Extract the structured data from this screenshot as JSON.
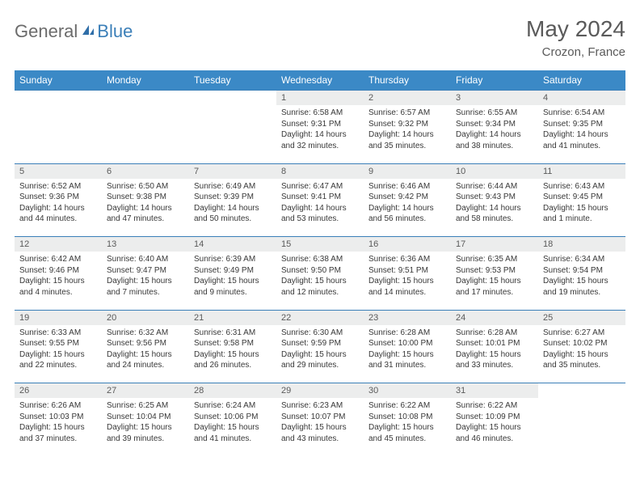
{
  "logo": {
    "part1": "General",
    "part2": "Blue"
  },
  "title": "May 2024",
  "location": "Crozon, France",
  "colors": {
    "header_bg": "#3b89c6",
    "header_text": "#ffffff",
    "rule": "#3b7fb8",
    "daynum_bg": "#eceded",
    "text_muted": "#5a5a5a",
    "body_text": "#383838",
    "logo_gray": "#6b6b6b",
    "logo_blue": "#3b7fb8"
  },
  "weekdays": [
    "Sunday",
    "Monday",
    "Tuesday",
    "Wednesday",
    "Thursday",
    "Friday",
    "Saturday"
  ],
  "weeks": [
    [
      {
        "n": "",
        "sr": "",
        "ss": "",
        "dl": ""
      },
      {
        "n": "",
        "sr": "",
        "ss": "",
        "dl": ""
      },
      {
        "n": "",
        "sr": "",
        "ss": "",
        "dl": ""
      },
      {
        "n": "1",
        "sr": "Sunrise: 6:58 AM",
        "ss": "Sunset: 9:31 PM",
        "dl": "Daylight: 14 hours and 32 minutes."
      },
      {
        "n": "2",
        "sr": "Sunrise: 6:57 AM",
        "ss": "Sunset: 9:32 PM",
        "dl": "Daylight: 14 hours and 35 minutes."
      },
      {
        "n": "3",
        "sr": "Sunrise: 6:55 AM",
        "ss": "Sunset: 9:34 PM",
        "dl": "Daylight: 14 hours and 38 minutes."
      },
      {
        "n": "4",
        "sr": "Sunrise: 6:54 AM",
        "ss": "Sunset: 9:35 PM",
        "dl": "Daylight: 14 hours and 41 minutes."
      }
    ],
    [
      {
        "n": "5",
        "sr": "Sunrise: 6:52 AM",
        "ss": "Sunset: 9:36 PM",
        "dl": "Daylight: 14 hours and 44 minutes."
      },
      {
        "n": "6",
        "sr": "Sunrise: 6:50 AM",
        "ss": "Sunset: 9:38 PM",
        "dl": "Daylight: 14 hours and 47 minutes."
      },
      {
        "n": "7",
        "sr": "Sunrise: 6:49 AM",
        "ss": "Sunset: 9:39 PM",
        "dl": "Daylight: 14 hours and 50 minutes."
      },
      {
        "n": "8",
        "sr": "Sunrise: 6:47 AM",
        "ss": "Sunset: 9:41 PM",
        "dl": "Daylight: 14 hours and 53 minutes."
      },
      {
        "n": "9",
        "sr": "Sunrise: 6:46 AM",
        "ss": "Sunset: 9:42 PM",
        "dl": "Daylight: 14 hours and 56 minutes."
      },
      {
        "n": "10",
        "sr": "Sunrise: 6:44 AM",
        "ss": "Sunset: 9:43 PM",
        "dl": "Daylight: 14 hours and 58 minutes."
      },
      {
        "n": "11",
        "sr": "Sunrise: 6:43 AM",
        "ss": "Sunset: 9:45 PM",
        "dl": "Daylight: 15 hours and 1 minute."
      }
    ],
    [
      {
        "n": "12",
        "sr": "Sunrise: 6:42 AM",
        "ss": "Sunset: 9:46 PM",
        "dl": "Daylight: 15 hours and 4 minutes."
      },
      {
        "n": "13",
        "sr": "Sunrise: 6:40 AM",
        "ss": "Sunset: 9:47 PM",
        "dl": "Daylight: 15 hours and 7 minutes."
      },
      {
        "n": "14",
        "sr": "Sunrise: 6:39 AM",
        "ss": "Sunset: 9:49 PM",
        "dl": "Daylight: 15 hours and 9 minutes."
      },
      {
        "n": "15",
        "sr": "Sunrise: 6:38 AM",
        "ss": "Sunset: 9:50 PM",
        "dl": "Daylight: 15 hours and 12 minutes."
      },
      {
        "n": "16",
        "sr": "Sunrise: 6:36 AM",
        "ss": "Sunset: 9:51 PM",
        "dl": "Daylight: 15 hours and 14 minutes."
      },
      {
        "n": "17",
        "sr": "Sunrise: 6:35 AM",
        "ss": "Sunset: 9:53 PM",
        "dl": "Daylight: 15 hours and 17 minutes."
      },
      {
        "n": "18",
        "sr": "Sunrise: 6:34 AM",
        "ss": "Sunset: 9:54 PM",
        "dl": "Daylight: 15 hours and 19 minutes."
      }
    ],
    [
      {
        "n": "19",
        "sr": "Sunrise: 6:33 AM",
        "ss": "Sunset: 9:55 PM",
        "dl": "Daylight: 15 hours and 22 minutes."
      },
      {
        "n": "20",
        "sr": "Sunrise: 6:32 AM",
        "ss": "Sunset: 9:56 PM",
        "dl": "Daylight: 15 hours and 24 minutes."
      },
      {
        "n": "21",
        "sr": "Sunrise: 6:31 AM",
        "ss": "Sunset: 9:58 PM",
        "dl": "Daylight: 15 hours and 26 minutes."
      },
      {
        "n": "22",
        "sr": "Sunrise: 6:30 AM",
        "ss": "Sunset: 9:59 PM",
        "dl": "Daylight: 15 hours and 29 minutes."
      },
      {
        "n": "23",
        "sr": "Sunrise: 6:28 AM",
        "ss": "Sunset: 10:00 PM",
        "dl": "Daylight: 15 hours and 31 minutes."
      },
      {
        "n": "24",
        "sr": "Sunrise: 6:28 AM",
        "ss": "Sunset: 10:01 PM",
        "dl": "Daylight: 15 hours and 33 minutes."
      },
      {
        "n": "25",
        "sr": "Sunrise: 6:27 AM",
        "ss": "Sunset: 10:02 PM",
        "dl": "Daylight: 15 hours and 35 minutes."
      }
    ],
    [
      {
        "n": "26",
        "sr": "Sunrise: 6:26 AM",
        "ss": "Sunset: 10:03 PM",
        "dl": "Daylight: 15 hours and 37 minutes."
      },
      {
        "n": "27",
        "sr": "Sunrise: 6:25 AM",
        "ss": "Sunset: 10:04 PM",
        "dl": "Daylight: 15 hours and 39 minutes."
      },
      {
        "n": "28",
        "sr": "Sunrise: 6:24 AM",
        "ss": "Sunset: 10:06 PM",
        "dl": "Daylight: 15 hours and 41 minutes."
      },
      {
        "n": "29",
        "sr": "Sunrise: 6:23 AM",
        "ss": "Sunset: 10:07 PM",
        "dl": "Daylight: 15 hours and 43 minutes."
      },
      {
        "n": "30",
        "sr": "Sunrise: 6:22 AM",
        "ss": "Sunset: 10:08 PM",
        "dl": "Daylight: 15 hours and 45 minutes."
      },
      {
        "n": "31",
        "sr": "Sunrise: 6:22 AM",
        "ss": "Sunset: 10:09 PM",
        "dl": "Daylight: 15 hours and 46 minutes."
      },
      {
        "n": "",
        "sr": "",
        "ss": "",
        "dl": ""
      }
    ]
  ]
}
